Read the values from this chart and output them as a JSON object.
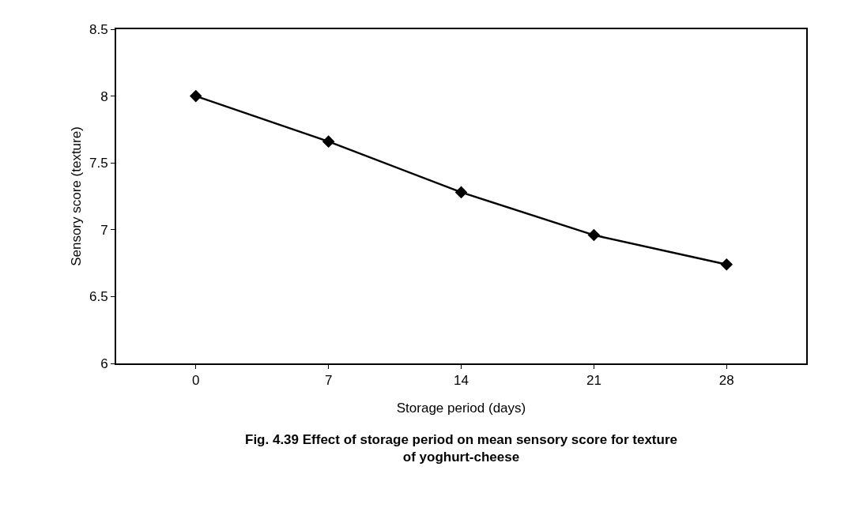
{
  "chart_data": {
    "type": "line",
    "xlabel": "Storage period (days)",
    "ylabel": "Sensory score (texture)",
    "categories": [
      "0",
      "7",
      "14",
      "21",
      "28"
    ],
    "series": [
      {
        "color": "#000000",
        "values": [
          8.0,
          7.66,
          7.28,
          6.96,
          6.74
        ]
      }
    ],
    "ylim": [
      6,
      8.5
    ],
    "yticks": [
      6,
      6.5,
      7,
      7.5,
      8,
      8.5
    ],
    "grid": false,
    "marker": "diamond",
    "line_style": "solid",
    "annotations": [
      "Fig. 4.39 Effect of storage period on mean sensory score for texture of yoghurt-cheese"
    ]
  }
}
